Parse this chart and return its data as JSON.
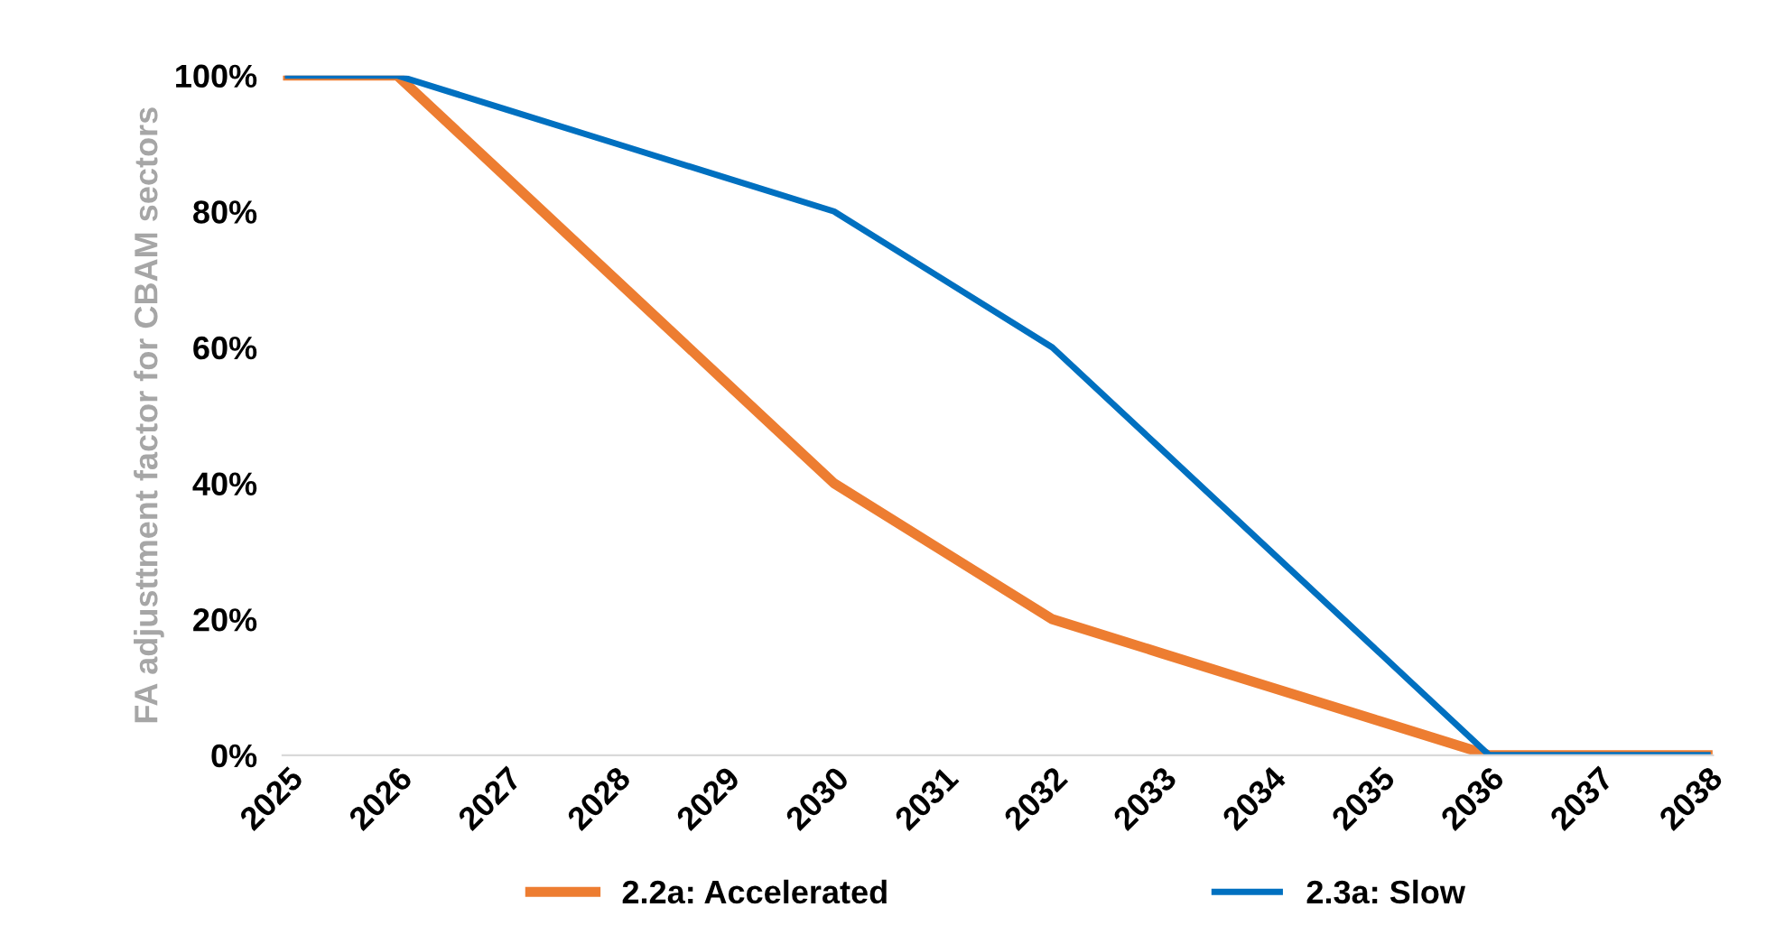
{
  "chart_data": {
    "type": "line",
    "ylabel": "FA adjusttment factor for CBAM sectors",
    "categories": [
      "2025",
      "2026",
      "2027",
      "2028",
      "2029",
      "2030",
      "2031",
      "2032",
      "2033",
      "2034",
      "2035",
      "2036",
      "2037",
      "2038"
    ],
    "series": [
      {
        "name": "2.2a: Accelerated",
        "color": "#ed7d31",
        "values": [
          100,
          100,
          85,
          70,
          55,
          40,
          30,
          20,
          15,
          10,
          5,
          0,
          0,
          0
        ]
      },
      {
        "name": "2.3a: Slow",
        "color": "#0070c0",
        "values": [
          100,
          100,
          95,
          90,
          85,
          80,
          70,
          60,
          45,
          30,
          15,
          0,
          0,
          0
        ]
      }
    ],
    "ylim": [
      0,
      100
    ],
    "yticks": [
      {
        "value": 0,
        "label": "0%"
      },
      {
        "value": 20,
        "label": "20%"
      },
      {
        "value": 40,
        "label": "40%"
      },
      {
        "value": 60,
        "label": "60%"
      },
      {
        "value": 80,
        "label": "80%"
      },
      {
        "value": 100,
        "label": "100%"
      }
    ],
    "grid": false,
    "legend": "bottom",
    "marker": "none",
    "line_style": "solid"
  }
}
